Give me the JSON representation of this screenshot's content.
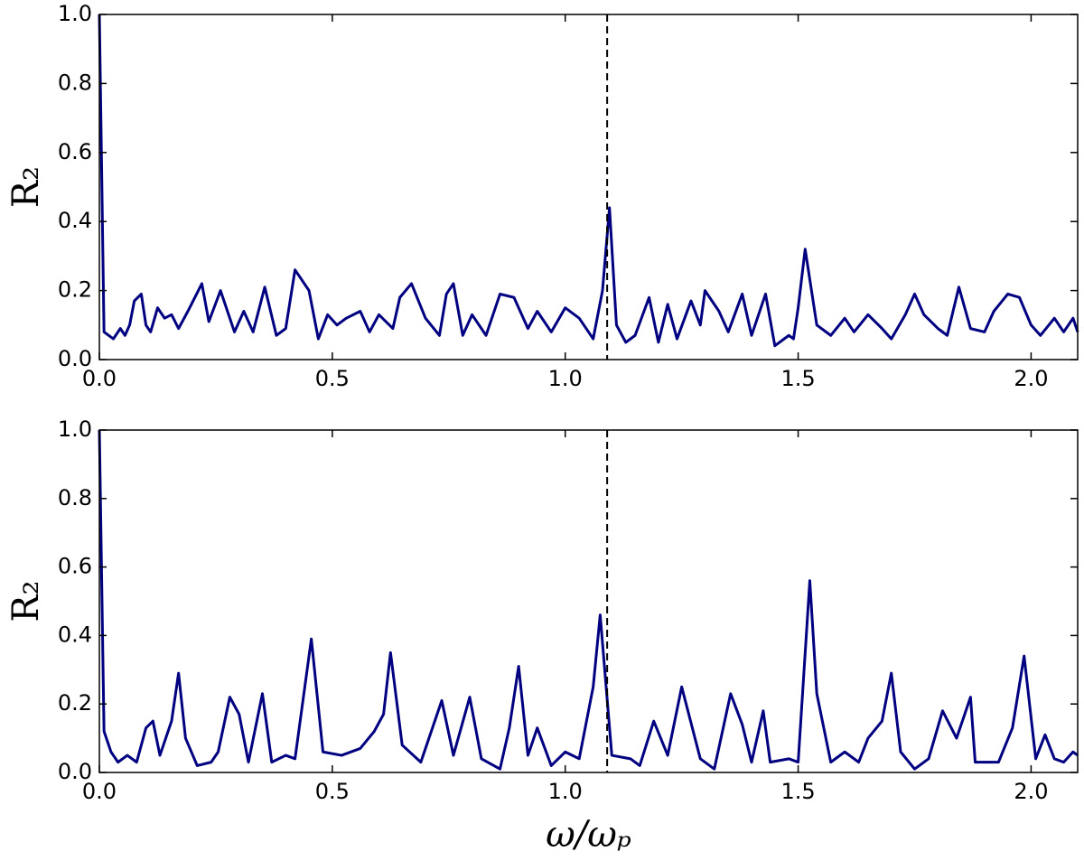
{
  "chart_data": [
    {
      "type": "line",
      "ylabel": "R₂",
      "x": [
        0,
        0.01,
        0.03,
        0.045,
        0.055,
        0.065,
        0.075,
        0.09,
        0.1,
        0.11,
        0.125,
        0.14,
        0.155,
        0.17,
        0.19,
        0.22,
        0.235,
        0.26,
        0.29,
        0.31,
        0.33,
        0.355,
        0.38,
        0.4,
        0.42,
        0.45,
        0.47,
        0.49,
        0.51,
        0.53,
        0.56,
        0.58,
        0.6,
        0.63,
        0.645,
        0.67,
        0.7,
        0.73,
        0.745,
        0.76,
        0.78,
        0.8,
        0.83,
        0.86,
        0.89,
        0.92,
        0.94,
        0.97,
        1.0,
        1.03,
        1.06,
        1.08,
        1.095,
        1.11,
        1.13,
        1.15,
        1.18,
        1.2,
        1.22,
        1.24,
        1.27,
        1.29,
        1.3,
        1.33,
        1.35,
        1.38,
        1.4,
        1.43,
        1.45,
        1.48,
        1.49,
        1.5,
        1.515,
        1.54,
        1.57,
        1.6,
        1.62,
        1.65,
        1.68,
        1.7,
        1.73,
        1.75,
        1.77,
        1.8,
        1.82,
        1.845,
        1.87,
        1.9,
        1.92,
        1.95,
        1.975,
        2.0,
        2.02,
        2.05,
        2.07,
        2.09,
        2.1
      ],
      "values": [
        1.0,
        0.08,
        0.06,
        0.09,
        0.07,
        0.1,
        0.17,
        0.19,
        0.1,
        0.08,
        0.15,
        0.12,
        0.13,
        0.09,
        0.14,
        0.22,
        0.11,
        0.2,
        0.08,
        0.14,
        0.08,
        0.21,
        0.07,
        0.09,
        0.26,
        0.2,
        0.06,
        0.13,
        0.1,
        0.12,
        0.14,
        0.08,
        0.13,
        0.09,
        0.18,
        0.22,
        0.12,
        0.07,
        0.19,
        0.22,
        0.07,
        0.13,
        0.07,
        0.19,
        0.18,
        0.09,
        0.14,
        0.08,
        0.15,
        0.12,
        0.06,
        0.2,
        0.44,
        0.1,
        0.05,
        0.07,
        0.18,
        0.05,
        0.16,
        0.06,
        0.17,
        0.1,
        0.2,
        0.14,
        0.08,
        0.19,
        0.07,
        0.19,
        0.04,
        0.07,
        0.06,
        0.15,
        0.32,
        0.1,
        0.07,
        0.12,
        0.08,
        0.13,
        0.09,
        0.06,
        0.13,
        0.19,
        0.13,
        0.09,
        0.07,
        0.21,
        0.09,
        0.08,
        0.14,
        0.19,
        0.18,
        0.1,
        0.07,
        0.12,
        0.08,
        0.12,
        0.08
      ],
      "color": "#000080",
      "vline": 1.09,
      "xlim": [
        0,
        2.1
      ],
      "ylim": [
        0,
        1
      ],
      "xticks": [
        {
          "value": 0,
          "label": "0.0"
        },
        {
          "value": 0.5,
          "label": "0.5"
        },
        {
          "value": 1,
          "label": "1.0"
        },
        {
          "value": 1.5,
          "label": "1.5"
        },
        {
          "value": 2,
          "label": "2.0"
        }
      ],
      "yticks": [
        {
          "value": 0,
          "label": "0.0"
        },
        {
          "value": 0.2,
          "label": "0.2"
        },
        {
          "value": 0.4,
          "label": "0.4"
        },
        {
          "value": 0.6,
          "label": "0.6"
        },
        {
          "value": 0.8,
          "label": "0.8"
        },
        {
          "value": 1,
          "label": "1.0"
        }
      ]
    },
    {
      "type": "line",
      "ylabel": "R₂",
      "xlabel": "ω/ωₚ",
      "x": [
        0,
        0.01,
        0.025,
        0.04,
        0.06,
        0.08,
        0.1,
        0.115,
        0.13,
        0.155,
        0.17,
        0.185,
        0.21,
        0.24,
        0.255,
        0.28,
        0.3,
        0.32,
        0.35,
        0.37,
        0.4,
        0.42,
        0.455,
        0.48,
        0.52,
        0.56,
        0.59,
        0.61,
        0.625,
        0.65,
        0.69,
        0.735,
        0.76,
        0.795,
        0.82,
        0.86,
        0.88,
        0.9,
        0.92,
        0.94,
        0.97,
        1.0,
        1.03,
        1.06,
        1.075,
        1.1,
        1.14,
        1.16,
        1.19,
        1.22,
        1.25,
        1.29,
        1.32,
        1.355,
        1.38,
        1.4,
        1.425,
        1.44,
        1.48,
        1.5,
        1.525,
        1.54,
        1.57,
        1.6,
        1.63,
        1.65,
        1.68,
        1.7,
        1.72,
        1.75,
        1.78,
        1.81,
        1.84,
        1.87,
        1.88,
        1.93,
        1.96,
        1.985,
        2.01,
        2.03,
        2.05,
        2.07,
        2.09,
        2.1
      ],
      "values": [
        1.0,
        0.12,
        0.06,
        0.03,
        0.05,
        0.03,
        0.13,
        0.15,
        0.05,
        0.15,
        0.29,
        0.1,
        0.02,
        0.03,
        0.06,
        0.22,
        0.17,
        0.03,
        0.23,
        0.03,
        0.05,
        0.04,
        0.39,
        0.06,
        0.05,
        0.07,
        0.12,
        0.17,
        0.35,
        0.08,
        0.03,
        0.21,
        0.05,
        0.22,
        0.04,
        0.01,
        0.13,
        0.31,
        0.05,
        0.13,
        0.02,
        0.06,
        0.04,
        0.25,
        0.46,
        0.05,
        0.04,
        0.02,
        0.15,
        0.05,
        0.25,
        0.04,
        0.01,
        0.23,
        0.14,
        0.03,
        0.18,
        0.03,
        0.04,
        0.03,
        0.56,
        0.23,
        0.03,
        0.06,
        0.03,
        0.1,
        0.15,
        0.29,
        0.06,
        0.01,
        0.04,
        0.18,
        0.1,
        0.22,
        0.03,
        0.03,
        0.13,
        0.34,
        0.04,
        0.11,
        0.04,
        0.03,
        0.06,
        0.05
      ],
      "color": "#000080",
      "vline": 1.09,
      "xlim": [
        0,
        2.1
      ],
      "ylim": [
        0,
        1
      ],
      "xticks": [
        {
          "value": 0,
          "label": "0.0"
        },
        {
          "value": 0.5,
          "label": "0.5"
        },
        {
          "value": 1,
          "label": "1.0"
        },
        {
          "value": 1.5,
          "label": "1.5"
        },
        {
          "value": 2,
          "label": "2.0"
        }
      ],
      "yticks": [
        {
          "value": 0,
          "label": "0.0"
        },
        {
          "value": 0.2,
          "label": "0.2"
        },
        {
          "value": 0.4,
          "label": "0.4"
        },
        {
          "value": 0.6,
          "label": "0.6"
        },
        {
          "value": 0.8,
          "label": "0.8"
        },
        {
          "value": 1,
          "label": "1.0"
        }
      ]
    }
  ]
}
